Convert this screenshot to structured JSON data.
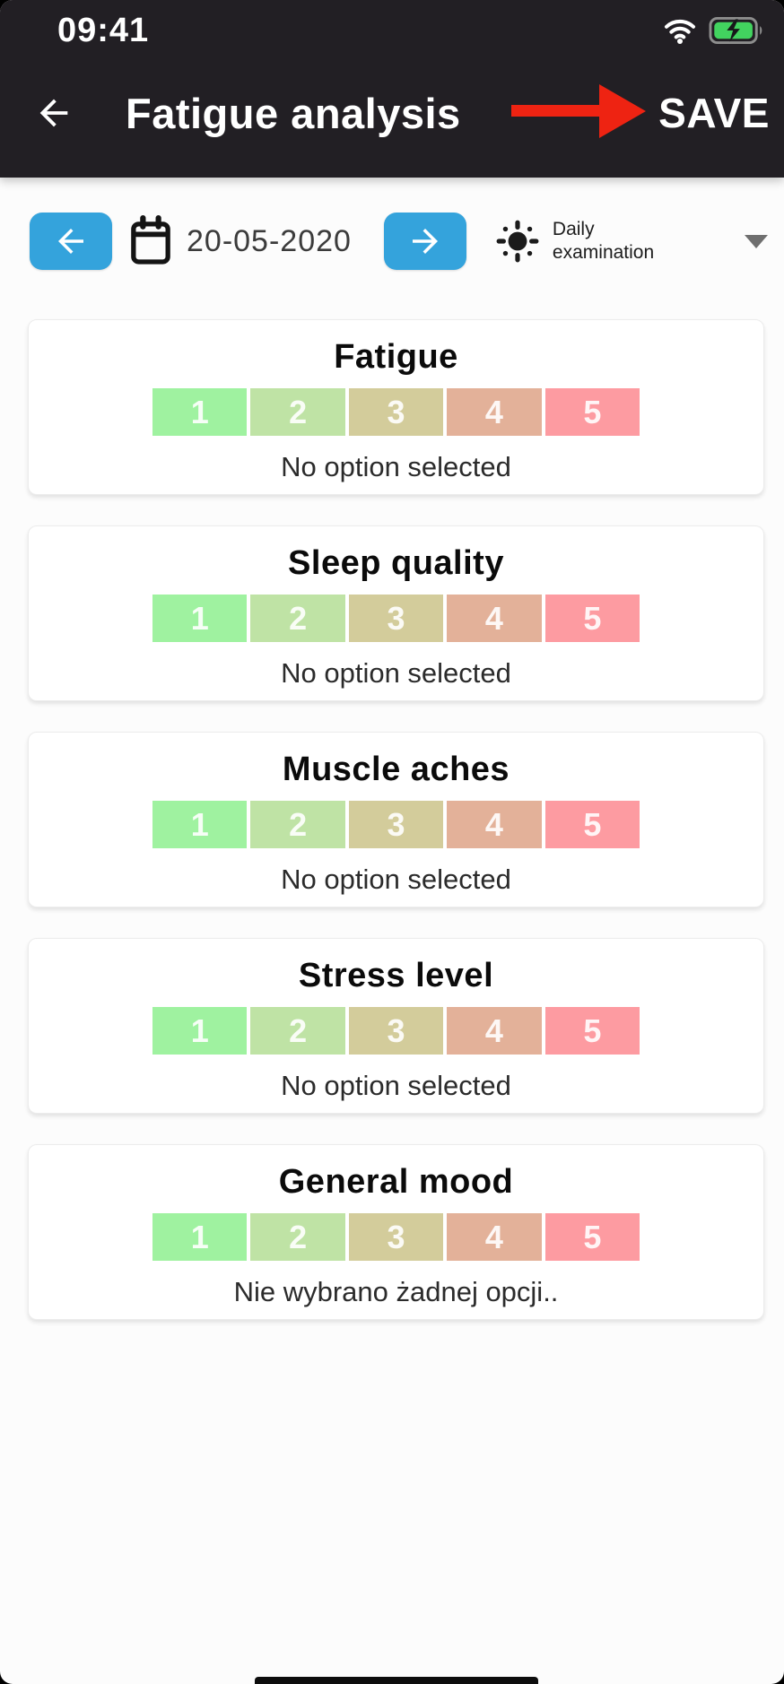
{
  "status_bar": {
    "time": "09:41"
  },
  "header": {
    "title": "Fatigue analysis",
    "save_label": "SAVE"
  },
  "toolbar": {
    "date": "20-05-2020",
    "mode_label": "Daily examination"
  },
  "scale": {
    "labels": [
      "1",
      "2",
      "3",
      "4",
      "5"
    ],
    "colors": [
      "#9ff2a0",
      "#bfe3a5",
      "#d3cc9b",
      "#e3b199",
      "#fd9ba1"
    ]
  },
  "cards": [
    {
      "title": "Fatigue",
      "status": "No option selected"
    },
    {
      "title": "Sleep quality",
      "status": "No option selected"
    },
    {
      "title": "Muscle aches",
      "status": "No option selected"
    },
    {
      "title": "Stress level",
      "status": "No option selected"
    },
    {
      "title": "General mood",
      "status": "Nie wybrano żadnej opcji.."
    }
  ],
  "colors": {
    "header_bg": "#221f24",
    "accent_blue": "#34a3dc",
    "annotation_red": "#ee2312",
    "battery_green": "#42d35f"
  }
}
